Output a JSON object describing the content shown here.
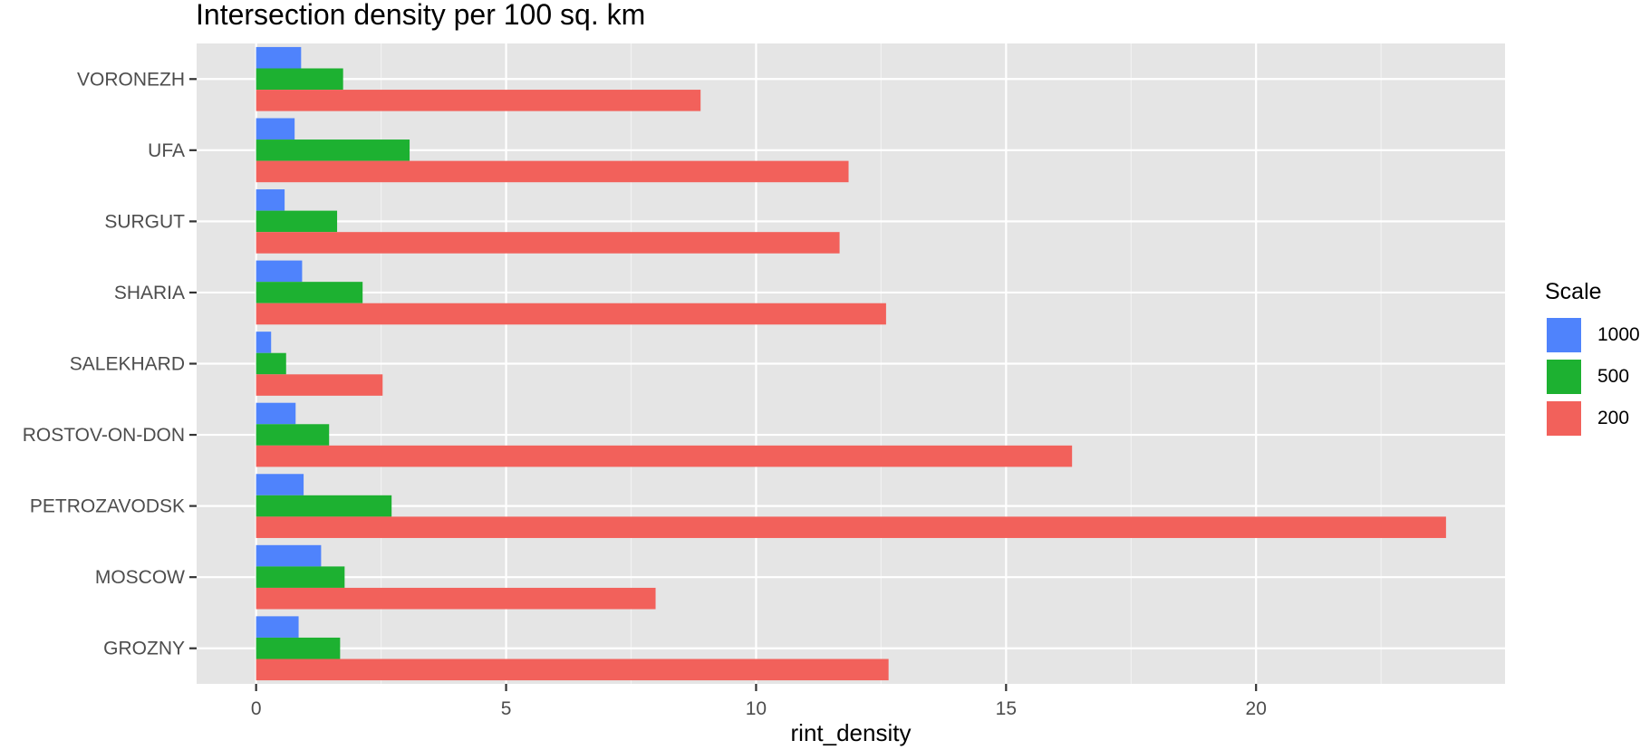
{
  "chart_data": {
    "type": "bar",
    "orientation": "horizontal",
    "title": "Intersection density per 100 sq. km",
    "xlabel": "rint_density",
    "ylabel": "",
    "xlim": [
      -1.19,
      24.98
    ],
    "xticks": [
      0,
      5,
      10,
      15,
      20
    ],
    "grid": true,
    "legend_title": "Scale",
    "legend_position": "right",
    "categories": [
      "VORONEZH",
      "UFA",
      "SURGUT",
      "SHARIA",
      "SALEKHARD",
      "ROSTOV-ON-DON",
      "PETROZAVODSK",
      "MOSCOW",
      "GROZNY"
    ],
    "series": [
      {
        "name": "1000",
        "color": "#4f83fc",
        "values": [
          0.9,
          0.77,
          0.57,
          0.92,
          0.3,
          0.79,
          0.95,
          1.3,
          0.85
        ]
      },
      {
        "name": "500",
        "color": "#1db131",
        "values": [
          1.74,
          3.07,
          1.62,
          2.13,
          0.6,
          1.46,
          2.71,
          1.77,
          1.68
        ]
      },
      {
        "name": "200",
        "color": "#f2615b",
        "values": [
          8.89,
          11.85,
          11.67,
          12.6,
          2.53,
          16.32,
          23.8,
          7.99,
          12.65
        ]
      }
    ]
  }
}
